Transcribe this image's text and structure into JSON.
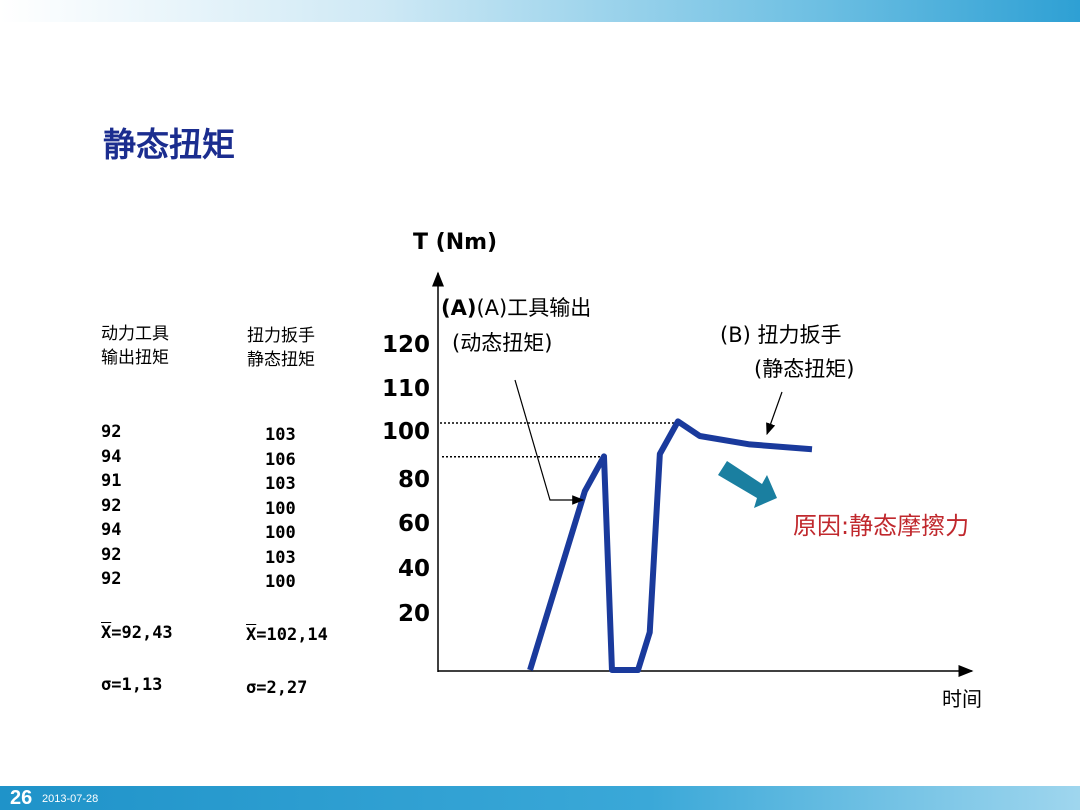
{
  "slide": {
    "title": "静态扭矩",
    "page_number": "26",
    "date": "2013-07-28"
  },
  "table": {
    "col1": {
      "header": [
        "动力工具",
        "输出扭矩"
      ],
      "values": [
        "92",
        "94",
        "91",
        "92",
        "94",
        "92",
        "92"
      ],
      "mean_label": "X",
      "mean_value": "=92,43",
      "sigma": "σ=1,13"
    },
    "col2": {
      "header": [
        "扭力扳手",
        "静态扭矩"
      ],
      "values": [
        "103",
        "106",
        "103",
        "100",
        "100",
        "103",
        "100"
      ],
      "mean_label": "X",
      "mean_value": "=102,14",
      "sigma": "σ=2,27"
    }
  },
  "chart_data": {
    "type": "line",
    "ylabel": "T (Nm)",
    "xlabel": "时间",
    "yticks": [
      20,
      40,
      60,
      80,
      100,
      110,
      120
    ],
    "reference_lines": [
      100,
      88
    ],
    "series": [
      {
        "x": [
          17.3,
          27.6,
          31.2,
          32.7,
          37.6,
          39.8,
          41.7,
          45.1,
          49.2,
          58.6,
          70.3
        ],
        "y": [
          0,
          74,
          89,
          0,
          0,
          13,
          90,
          102,
          97.5,
          94,
          92
        ]
      }
    ],
    "color": "#1a3a9c",
    "annotations": {
      "a": [
        "(A)工具输出",
        "(动态扭矩)"
      ],
      "b": [
        "(B) 扭力扳手",
        "(静态扭矩)"
      ],
      "reason": "原因:静态摩擦力",
      "reason_color": "#c0282d",
      "arrow_color": "#1a7fa0"
    }
  }
}
